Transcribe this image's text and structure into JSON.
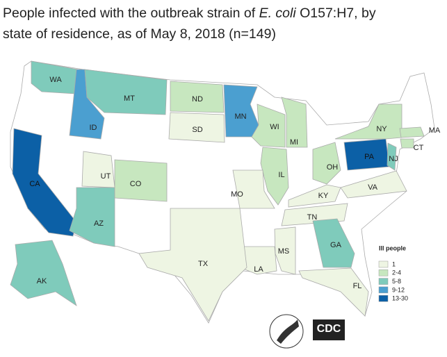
{
  "title": {
    "line1": "People infected with the outbreak strain of ",
    "italic": "E. coli",
    "line1_end": " O157:H7, by",
    "line2": "state of residence, as of May 8, 2018 (n=149)"
  },
  "legend": {
    "title": "Ill people",
    "entries": [
      {
        "label": "1",
        "color": "#eef5e3"
      },
      {
        "label": "2-4",
        "color": "#c7e7bf"
      },
      {
        "label": "5-8",
        "color": "#7fcbbb"
      },
      {
        "label": "9-12",
        "color": "#4b9fd0"
      },
      {
        "label": "13-30",
        "color": "#0c60a6"
      }
    ]
  },
  "states": [
    {
      "label": "WA",
      "class": 2
    },
    {
      "label": "CA",
      "class": 4
    },
    {
      "label": "ID",
      "class": 3
    },
    {
      "label": "MT",
      "class": 2
    },
    {
      "label": "ND",
      "class": 1
    },
    {
      "label": "SD",
      "class": 0
    },
    {
      "label": "MN",
      "class": 3
    },
    {
      "label": "WI",
      "class": 1
    },
    {
      "label": "MI",
      "class": 1
    },
    {
      "label": "IL",
      "class": 1
    },
    {
      "label": "OH",
      "class": 1
    },
    {
      "label": "PA",
      "class": 4
    },
    {
      "label": "NY",
      "class": 1
    },
    {
      "label": "NJ",
      "class": 2
    },
    {
      "label": "CT",
      "class": 1
    },
    {
      "label": "MA",
      "class": 1
    },
    {
      "label": "VA",
      "class": 0
    },
    {
      "label": "KY",
      "class": 0
    },
    {
      "label": "TN",
      "class": 0
    },
    {
      "label": "MO",
      "class": 0
    },
    {
      "label": "MS",
      "class": 0
    },
    {
      "label": "LA",
      "class": 0
    },
    {
      "label": "GA",
      "class": 2
    },
    {
      "label": "FL",
      "class": 0
    },
    {
      "label": "TX",
      "class": 0
    },
    {
      "label": "AZ",
      "class": 2
    },
    {
      "label": "UT",
      "class": 0
    },
    {
      "label": "CO",
      "class": 1
    },
    {
      "label": "AK",
      "class": 2
    }
  ],
  "logo": "CDC"
}
